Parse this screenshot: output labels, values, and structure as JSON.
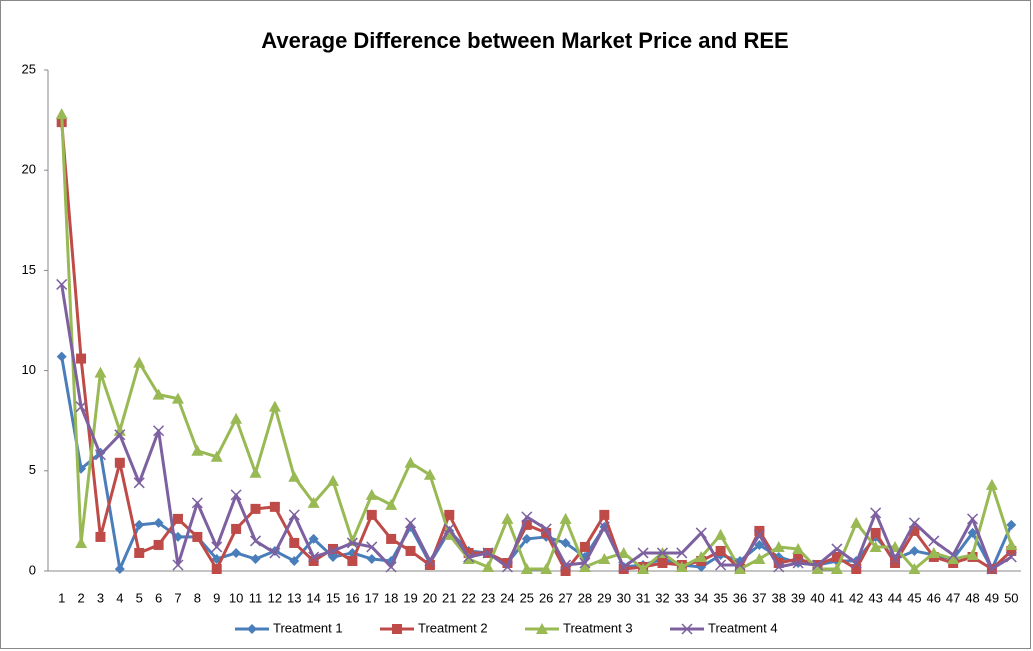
{
  "chart_data": {
    "type": "line",
    "title": "Average Difference between Market Price and REE",
    "categories": [
      "1",
      "2",
      "3",
      "4",
      "5",
      "6",
      "7",
      "8",
      "9",
      "10",
      "11",
      "12",
      "13",
      "14",
      "15",
      "16",
      "17",
      "18",
      "19",
      "20",
      "21",
      "22",
      "23",
      "24",
      "25",
      "26",
      "27",
      "28",
      "29",
      "30",
      "31",
      "32",
      "33",
      "34",
      "35",
      "36",
      "37",
      "38",
      "39",
      "40",
      "41",
      "42",
      "43",
      "44",
      "45",
      "46",
      "47",
      "48",
      "49",
      "50"
    ],
    "series": [
      {
        "name": "Treatment 1",
        "color": "#4a7ebb",
        "marker": "diamond",
        "values": [
          10.7,
          5.1,
          5.9,
          0.1,
          2.3,
          2.4,
          1.7,
          1.7,
          0.6,
          0.9,
          0.6,
          1.0,
          0.5,
          1.6,
          0.7,
          0.9,
          0.6,
          0.5,
          2.2,
          0.4,
          2.0,
          1.0,
          0.9,
          0.4,
          1.6,
          1.7,
          1.4,
          0.7,
          2.2,
          0.2,
          0.3,
          0.6,
          0.3,
          0.2,
          0.8,
          0.5,
          1.3,
          0.7,
          0.4,
          0.3,
          0.5,
          0.5,
          1.7,
          0.6,
          1.0,
          0.8,
          0.6,
          1.9,
          0.1,
          2.3
        ]
      },
      {
        "name": "Treatment 2",
        "color": "#be4b48",
        "marker": "square",
        "values": [
          22.4,
          10.6,
          1.7,
          5.4,
          0.9,
          1.3,
          2.6,
          1.7,
          0.1,
          2.1,
          3.1,
          3.2,
          1.4,
          0.5,
          1.1,
          0.5,
          2.8,
          1.6,
          1.0,
          0.3,
          2.8,
          0.9,
          0.9,
          0.4,
          2.3,
          1.9,
          0.0,
          1.2,
          2.8,
          0.1,
          0.2,
          0.4,
          0.3,
          0.5,
          1.0,
          0.1,
          2.0,
          0.4,
          0.6,
          0.3,
          0.7,
          0.1,
          1.9,
          0.4,
          2.0,
          0.7,
          0.4,
          0.7,
          0.1,
          1.0
        ]
      },
      {
        "name": "Treatment 3",
        "color": "#98b954",
        "marker": "triangle",
        "values": [
          22.8,
          1.4,
          9.9,
          7.0,
          10.4,
          8.8,
          8.6,
          6.0,
          5.7,
          7.6,
          4.9,
          8.2,
          4.7,
          3.4,
          4.5,
          1.5,
          3.8,
          3.3,
          5.4,
          4.8,
          1.8,
          0.6,
          0.2,
          2.6,
          0.1,
          0.1,
          2.6,
          0.2,
          0.6,
          0.9,
          0.1,
          0.9,
          0.2,
          0.7,
          1.8,
          0.1,
          0.6,
          1.2,
          1.1,
          0.1,
          0.1,
          2.4,
          1.2,
          1.2,
          0.1,
          0.9,
          0.6,
          0.8,
          4.3,
          1.3
        ]
      },
      {
        "name": "Treatment 4",
        "color": "#7d60a0",
        "marker": "x",
        "values": [
          14.3,
          8.2,
          5.8,
          6.8,
          4.4,
          7.0,
          0.3,
          3.4,
          1.2,
          3.8,
          1.5,
          0.9,
          2.8,
          0.7,
          1.0,
          1.4,
          1.2,
          0.2,
          2.4,
          0.5,
          2.1,
          0.7,
          0.9,
          0.2,
          2.7,
          2.1,
          0.3,
          0.4,
          2.2,
          0.2,
          0.9,
          0.9,
          0.9,
          1.9,
          0.3,
          0.3,
          1.8,
          0.2,
          0.4,
          0.3,
          1.1,
          0.4,
          2.9,
          0.6,
          2.4,
          1.5,
          0.8,
          2.6,
          0.1,
          0.7
        ]
      }
    ],
    "ylim": [
      0,
      25
    ],
    "yticks": [
      0,
      5,
      10,
      15,
      20,
      25
    ],
    "grid": false,
    "legend": "bottom"
  }
}
